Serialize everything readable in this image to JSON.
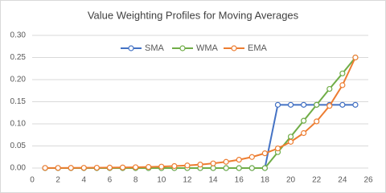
{
  "chart_data": {
    "type": "line",
    "title": "Value Weighting Profiles for Moving Averages",
    "x": [
      1,
      2,
      3,
      4,
      5,
      6,
      7,
      8,
      9,
      10,
      11,
      12,
      13,
      14,
      15,
      16,
      17,
      18,
      19,
      20,
      21,
      22,
      23,
      24,
      25
    ],
    "series": [
      {
        "name": "SMA",
        "color": "#4472c4",
        "values": [
          0,
          0,
          0,
          0,
          0,
          0,
          0,
          0,
          0,
          0,
          0,
          0,
          0,
          0,
          0,
          0,
          0,
          0,
          0.143,
          0.143,
          0.143,
          0.143,
          0.143,
          0.143,
          0.143
        ]
      },
      {
        "name": "WMA",
        "color": "#70ad47",
        "values": [
          0,
          0,
          0,
          0,
          0,
          0,
          0,
          0,
          0,
          0,
          0,
          0,
          0,
          0,
          0,
          0,
          0,
          0,
          0.036,
          0.071,
          0.107,
          0.143,
          0.179,
          0.214,
          0.25
        ]
      },
      {
        "name": "EMA",
        "color": "#ed7d31",
        "values": [
          0.0003,
          0.0003,
          0.0004,
          0.0006,
          0.0008,
          0.0011,
          0.0014,
          0.0019,
          0.0025,
          0.0033,
          0.0045,
          0.0059,
          0.0079,
          0.0106,
          0.0141,
          0.0188,
          0.025,
          0.0334,
          0.0445,
          0.0593,
          0.0791,
          0.1055,
          0.1406,
          0.1875,
          0.25
        ]
      }
    ],
    "xlim": [
      0,
      26
    ],
    "xticks": [
      0,
      2,
      4,
      6,
      8,
      10,
      12,
      14,
      16,
      18,
      20,
      22,
      24,
      26
    ],
    "ylim": [
      0,
      0.3
    ],
    "yticks": [
      {
        "value": 0,
        "label": "0.00"
      },
      {
        "value": 0.05,
        "label": "0.05"
      },
      {
        "value": 0.1,
        "label": "0.10"
      },
      {
        "value": 0.15,
        "label": "0.15"
      },
      {
        "value": 0.2,
        "label": "0.20"
      },
      {
        "value": 0.25,
        "label": "0.25"
      },
      {
        "value": 0.3,
        "label": "0.30"
      }
    ],
    "grid": true,
    "legend": "top"
  }
}
